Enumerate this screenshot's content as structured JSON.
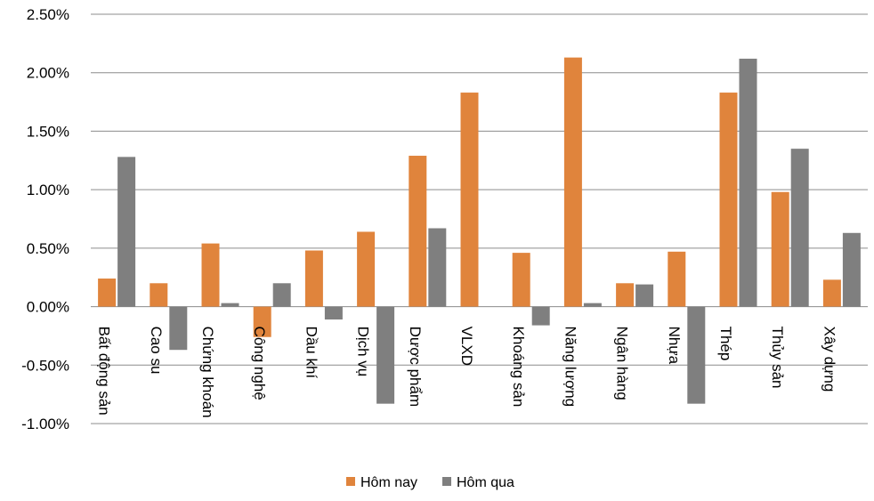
{
  "chart_data": {
    "type": "bar",
    "categories": [
      "Bất động sản",
      "Cao su",
      "Chứng khoán",
      "Công nghệ",
      "Dầu khí",
      "Dịch vụ",
      "Dược phẩm",
      "VLXD",
      "Khoáng sản",
      "Năng lượng",
      "Ngân hàng",
      "Nhựa",
      "Thép",
      "Thủy sản",
      "Xây dựng"
    ],
    "series": [
      {
        "name": "Hôm nay",
        "color": "#E0843C",
        "values": [
          0.24,
          0.2,
          0.54,
          -0.26,
          0.48,
          0.64,
          1.29,
          1.83,
          0.46,
          2.13,
          0.2,
          0.47,
          1.83,
          0.98,
          0.23
        ]
      },
      {
        "name": "Hôm qua",
        "color": "#7F7F7F",
        "values": [
          1.28,
          -0.37,
          0.03,
          0.2,
          -0.11,
          -0.83,
          0.67,
          0.0,
          -0.16,
          0.03,
          0.19,
          -0.83,
          2.12,
          1.35,
          0.63
        ]
      }
    ],
    "y_ticks": [
      "2.50%",
      "2.00%",
      "1.50%",
      "1.00%",
      "0.50%",
      "0.00%",
      "-0.50%",
      "-1.00%"
    ],
    "ylim": [
      -1.0,
      2.5
    ],
    "y_unit": "%",
    "grid": true,
    "legend_position": "bottom-center",
    "title": "",
    "xlabel": "",
    "ylabel": ""
  }
}
